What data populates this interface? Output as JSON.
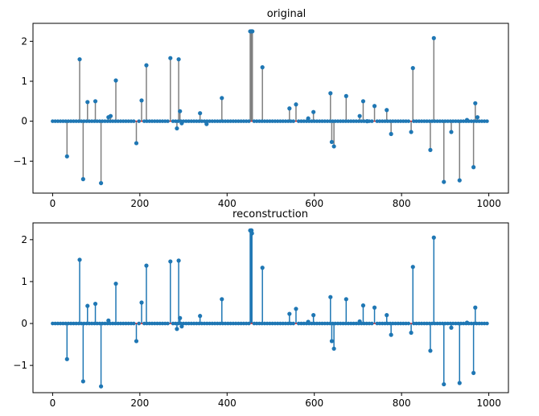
{
  "chart_data": [
    {
      "type": "stem",
      "title": "original",
      "xlim": [
        -45,
        1045
      ],
      "ylim": [
        -1.8,
        2.45
      ],
      "xticks": [
        0,
        200,
        400,
        600,
        800,
        1000
      ],
      "yticks": [
        -1,
        0,
        1,
        2
      ],
      "stem_color": "#808080",
      "marker_color": "#1f77b4",
      "baseline_color": "#d62728",
      "n_points": 1000,
      "x": [
        33,
        62,
        70,
        80,
        98,
        111,
        128,
        133,
        145,
        192,
        204,
        215,
        270,
        285,
        289,
        292,
        296,
        338,
        353,
        388,
        453,
        455,
        456,
        457,
        458,
        481,
        543,
        558,
        586,
        598,
        637,
        640,
        645,
        673,
        704,
        712,
        721,
        738,
        766,
        776,
        822,
        826,
        866,
        874,
        897,
        914,
        933,
        950,
        965,
        969,
        974
      ],
      "y": [
        -0.88,
        1.55,
        -1.45,
        0.48,
        0.5,
        -1.55,
        0.1,
        0.13,
        1.02,
        -0.55,
        0.52,
        1.4,
        1.58,
        -0.18,
        1.55,
        0.25,
        -0.05,
        0.2,
        -0.07,
        0.58,
        2.25,
        2.25,
        2.25,
        2.25,
        2.25,
        1.35,
        0.32,
        0.42,
        0.07,
        0.23,
        0.7,
        -0.52,
        -0.63,
        0.63,
        0.13,
        0.5,
        0.0,
        0.38,
        0.28,
        -0.32,
        -0.27,
        1.33,
        -0.72,
        2.08,
        -1.52,
        -0.27,
        -1.48,
        0.03,
        -1.15,
        0.45,
        0.1
      ]
    },
    {
      "type": "stem",
      "title": "reconstruction",
      "xlim": [
        -45,
        1045
      ],
      "ylim": [
        -1.65,
        2.4
      ],
      "xticks": [
        0,
        200,
        400,
        600,
        800,
        1000
      ],
      "yticks": [
        -1,
        0,
        1,
        2
      ],
      "stem_color": "#1f77b4",
      "marker_color": "#1f77b4",
      "baseline_color": "#d62728",
      "n_points": 1000,
      "x": [
        33,
        62,
        70,
        80,
        98,
        111,
        128,
        145,
        192,
        204,
        215,
        270,
        285,
        289,
        292,
        296,
        338,
        388,
        453,
        455,
        456,
        457,
        481,
        543,
        558,
        586,
        598,
        637,
        640,
        645,
        673,
        704,
        712,
        738,
        766,
        776,
        822,
        826,
        866,
        874,
        897,
        914,
        933,
        950,
        965,
        969
      ],
      "y": [
        -0.85,
        1.52,
        -1.38,
        0.42,
        0.47,
        -1.5,
        0.07,
        0.95,
        -0.42,
        0.5,
        1.38,
        1.48,
        -0.13,
        1.5,
        0.13,
        -0.07,
        0.18,
        0.58,
        2.22,
        2.22,
        2.22,
        2.15,
        1.33,
        0.23,
        0.35,
        0.04,
        0.2,
        0.63,
        -0.42,
        -0.6,
        0.58,
        0.05,
        0.43,
        0.38,
        0.2,
        -0.27,
        -0.22,
        1.35,
        -0.65,
        2.05,
        -1.45,
        -0.1,
        -1.42,
        0.02,
        -1.18,
        0.38
      ]
    }
  ]
}
